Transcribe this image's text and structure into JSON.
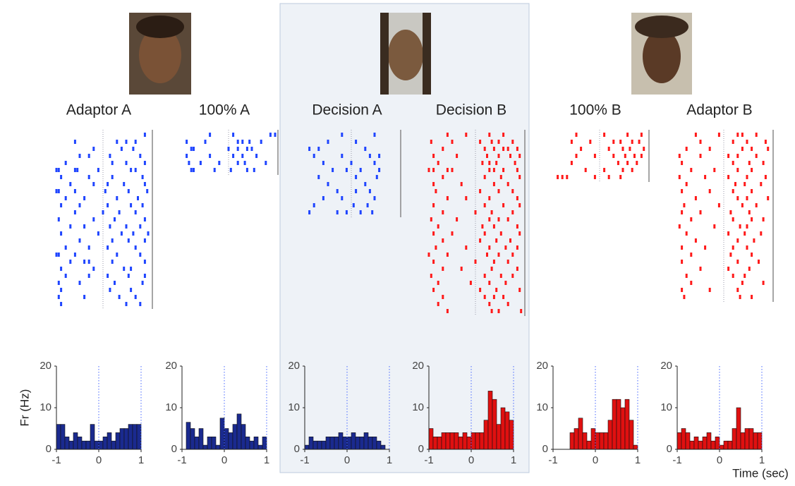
{
  "chart_data": {
    "type": "histogram",
    "y_label": "Fr (Hz)",
    "x_label": "Time (sec)",
    "xlim": [
      -1,
      1
    ],
    "xticks": [
      -1,
      0,
      1
    ],
    "ylim": [
      0,
      20
    ],
    "yticks": [
      0,
      10,
      20
    ],
    "bins": [
      -1,
      -0.9,
      -0.8,
      -0.7,
      -0.6,
      -0.5,
      -0.4,
      -0.3,
      -0.2,
      -0.1,
      0,
      0.1,
      0.2,
      0.3,
      0.4,
      0.5,
      0.6,
      0.7,
      0.8,
      0.9,
      1
    ],
    "panels": [
      {
        "title": "Adaptor A",
        "color": "#1a2a8f",
        "raster_color": "#1f45ff",
        "values": [
          6,
          6,
          3,
          2,
          4,
          3,
          2,
          2,
          6,
          2,
          2,
          3,
          4,
          2,
          4,
          5,
          5,
          6,
          6,
          6
        ],
        "raster": [
          [
            0.9
          ],
          [
            -0.6,
            0.3,
            0.5,
            0.7
          ],
          [
            -0.2,
            0.4,
            0.65
          ],
          [
            -0.5,
            -0.3,
            0.15,
            0.8
          ],
          [
            -0.8,
            0.2,
            0.5,
            0.9
          ],
          [
            -1,
            -0.95,
            -0.6,
            -0.55,
            -0.1,
            0.6,
            0.7
          ],
          [
            -0.9,
            -0.3,
            0.2,
            0.85
          ],
          [
            -0.7,
            -0.2,
            0.1,
            0.45,
            0.9
          ],
          [
            -1,
            -0.95,
            -0.6,
            0.05,
            0.55,
            0.95
          ],
          [
            -0.8,
            -0.4,
            0.3,
            0.75
          ],
          [
            -0.9,
            -0.5,
            0.1,
            0.6,
            0.85
          ],
          [
            -0.6,
            0.0,
            0.35,
            0.7
          ],
          [
            -0.95,
            -0.2,
            0.25,
            0.9
          ],
          [
            -0.7,
            -0.4,
            0.15,
            0.5,
            0.8
          ],
          [
            -0.9,
            -0.1,
            0.4,
            0.65,
            0.97
          ],
          [
            -0.5,
            0.2,
            0.55,
            0.9
          ],
          [
            -0.8,
            -0.3,
            0.1,
            0.7
          ],
          [
            -1,
            -0.95,
            -0.6,
            0.3,
            0.8
          ],
          [
            -0.7,
            -0.4,
            -0.3,
            0.2,
            0.9
          ],
          [
            -0.9,
            -0.2,
            0.45,
            0.6
          ],
          [
            -0.8,
            -0.3,
            0.1,
            0.55,
            0.9
          ],
          [
            -0.95,
            -0.5,
            0.25,
            0.85
          ],
          [
            -0.9,
            0.15,
            0.6
          ],
          [
            -0.95,
            -0.4,
            0.35,
            0.7
          ],
          [
            -0.9,
            0.5,
            0.8
          ]
        ]
      },
      {
        "title": "100% A",
        "color": "#1a2a8f",
        "raster_color": "#1f45ff",
        "values": [
          0,
          6.5,
          5,
          3,
          5,
          1,
          3,
          3,
          1,
          7.5,
          5,
          4,
          6,
          8.5,
          6,
          3,
          2,
          3,
          1,
          3
        ],
        "raster": [
          [
            -0.4,
            0.1,
            0.9,
            1.0
          ],
          [
            -0.9,
            -0.5,
            0.2,
            0.3,
            0.45,
            0.7
          ],
          [
            -0.8,
            -0.75,
            0.0,
            0.2,
            0.4,
            0.5
          ],
          [
            -0.9,
            -0.4,
            0.1,
            0.3,
            0.6
          ],
          [
            -0.85,
            -0.6,
            -0.2,
            0.2,
            0.35,
            0.8
          ],
          [
            -0.8,
            -0.75,
            -0.3,
            0.05,
            0.4,
            0.55
          ]
        ]
      },
      {
        "title": "Decision A",
        "color": "#1a2a8f",
        "raster_color": "#1f45ff",
        "values": [
          1,
          3,
          2,
          2,
          2,
          3,
          3,
          3,
          4,
          3,
          3,
          4,
          3,
          3,
          4,
          3,
          3,
          2,
          1,
          0
        ],
        "raster": [
          [
            -0.2,
            0.5
          ],
          [
            -0.5,
            0.1
          ],
          [
            -0.9,
            -0.7,
            0.3
          ],
          [
            -0.8,
            -0.2,
            0.4,
            0.6
          ],
          [
            -0.6,
            0.0,
            0.5
          ],
          [
            -0.4,
            -0.1,
            0.2,
            0.6
          ],
          [
            -0.7,
            0.1,
            0.55
          ],
          [
            -0.5,
            0.3
          ],
          [
            -0.3,
            0.1,
            0.4
          ],
          [
            -0.6,
            -0.2,
            0.5
          ],
          [
            -0.8,
            0.05,
            0.35
          ],
          [
            -0.9,
            -0.3,
            -0.1,
            0.2,
            0.45
          ]
        ]
      },
      {
        "title": "Decision B",
        "color": "#e01010",
        "raster_color": "#ff1a1a",
        "values": [
          5,
          3,
          3,
          4,
          4,
          4,
          4,
          3,
          4,
          3,
          4,
          4,
          4,
          7,
          14,
          12,
          6,
          10,
          9,
          7
        ],
        "raster": [
          [
            -0.6,
            -0.2,
            0.3,
            0.6
          ],
          [
            -0.95,
            -0.5,
            0.1,
            0.35,
            0.5,
            0.8
          ],
          [
            -0.7,
            0.2,
            0.4,
            0.6,
            0.7,
            0.9
          ],
          [
            -0.9,
            -0.4,
            0.25,
            0.5,
            0.75,
            0.95
          ],
          [
            -0.8,
            0.15,
            0.3,
            0.45,
            0.85
          ],
          [
            -1,
            -0.9,
            -0.6,
            -0.5,
            0.3,
            0.4,
            0.6,
            0.9
          ],
          [
            -0.7,
            0.2,
            0.55,
            0.95
          ],
          [
            -0.9,
            -0.3,
            0.4,
            0.7
          ],
          [
            -0.85,
            0.1,
            0.5,
            0.8
          ],
          [
            -0.6,
            -0.2,
            0.3,
            0.9
          ],
          [
            -0.9,
            0.2,
            0.6,
            0.95
          ],
          [
            -0.7,
            0.0,
            0.35,
            0.8
          ],
          [
            -0.95,
            -0.4,
            0.3,
            0.5,
            0.7
          ],
          [
            -0.8,
            0.15,
            0.4,
            0.9
          ],
          [
            -0.9,
            -0.5,
            0.2,
            0.55,
            0.95
          ],
          [
            -0.7,
            0.1,
            0.45,
            0.75
          ],
          [
            -0.85,
            -0.2,
            0.3,
            0.65,
            0.9
          ],
          [
            -1,
            -0.6,
            0.25,
            0.5,
            0.8
          ],
          [
            -0.9,
            0.0,
            0.4,
            0.7
          ],
          [
            -0.7,
            -0.3,
            0.35,
            0.9
          ],
          [
            -0.95,
            0.2,
            0.55,
            0.8
          ],
          [
            -0.8,
            -0.1,
            0.3,
            0.65
          ],
          [
            -0.9,
            0.1,
            0.45,
            0.95
          ],
          [
            -0.7,
            0.2,
            0.4,
            0.6
          ],
          [
            -0.8,
            0.3,
            0.7
          ],
          [
            -0.6,
            0.35,
            0.5,
            0.98
          ]
        ]
      },
      {
        "title": "100% B",
        "color": "#e01010",
        "raster_color": "#ff1a1a",
        "values": [
          0,
          0,
          0,
          0,
          4,
          5,
          7.5,
          4,
          2,
          5,
          4,
          4,
          4,
          7,
          12,
          12,
          10,
          12,
          7,
          1
        ],
        "raster": [
          [
            -0.5,
            0.1,
            0.6,
            0.9
          ],
          [
            -0.6,
            -0.2,
            0.3,
            0.45,
            0.7,
            0.85
          ],
          [
            -0.4,
            0.2,
            0.5,
            0.65,
            0.95
          ],
          [
            -0.5,
            -0.1,
            0.3,
            0.55,
            0.75,
            0.9
          ],
          [
            -0.6,
            0.4,
            0.6,
            0.8
          ],
          [
            -0.3,
            0.1,
            0.5,
            0.7
          ],
          [
            -0.9,
            -0.8,
            -0.7,
            -0.1,
            0.2,
            0.45
          ]
        ]
      },
      {
        "title": "Adaptor B",
        "color": "#e01010",
        "raster_color": "#ff1a1a",
        "values": [
          4,
          5,
          4,
          2,
          3,
          2,
          3,
          4,
          2,
          3,
          1,
          2,
          2,
          5,
          10,
          4,
          5,
          5,
          4,
          4
        ],
        "raster": [
          [
            -0.6,
            -0.1,
            0.3,
            0.4,
            0.7
          ],
          [
            -0.5,
            0.2,
            0.5,
            0.9
          ],
          [
            -0.8,
            -0.3,
            0.4,
            0.6,
            0.95
          ],
          [
            -0.95,
            -0.5,
            0.1,
            0.3,
            0.7
          ],
          [
            -0.9,
            0.2,
            0.55,
            0.85
          ],
          [
            -0.7,
            -0.2,
            0.3,
            0.6
          ],
          [
            -0.95,
            -0.4,
            0.1,
            0.5,
            0.9
          ],
          [
            -0.8,
            0.25,
            0.45,
            0.8
          ],
          [
            -0.9,
            -0.3,
            0.2,
            0.6
          ],
          [
            -0.6,
            0.3,
            0.5,
            0.95
          ],
          [
            -0.85,
            -0.1,
            0.4,
            0.7
          ],
          [
            -0.9,
            -0.5,
            0.15,
            0.55
          ],
          [
            -0.7,
            0.2,
            0.6,
            0.85
          ],
          [
            -0.95,
            -0.2,
            0.35,
            0.5
          ],
          [
            -0.8,
            0.1,
            0.45,
            0.8
          ],
          [
            -0.6,
            0.3,
            0.65
          ],
          [
            -0.9,
            -0.4,
            0.2,
            0.5
          ],
          [
            -0.7,
            0.15,
            0.6
          ],
          [
            -0.9,
            0.3,
            0.75
          ],
          [
            -0.5,
            0.1,
            0.55
          ],
          [
            -0.8,
            0.2,
            0.45
          ],
          [
            -0.7,
            0.4,
            0.85
          ],
          [
            -0.9,
            -0.3,
            0.3
          ],
          [
            -0.85,
            0.35,
            0.6
          ]
        ]
      }
    ]
  }
}
